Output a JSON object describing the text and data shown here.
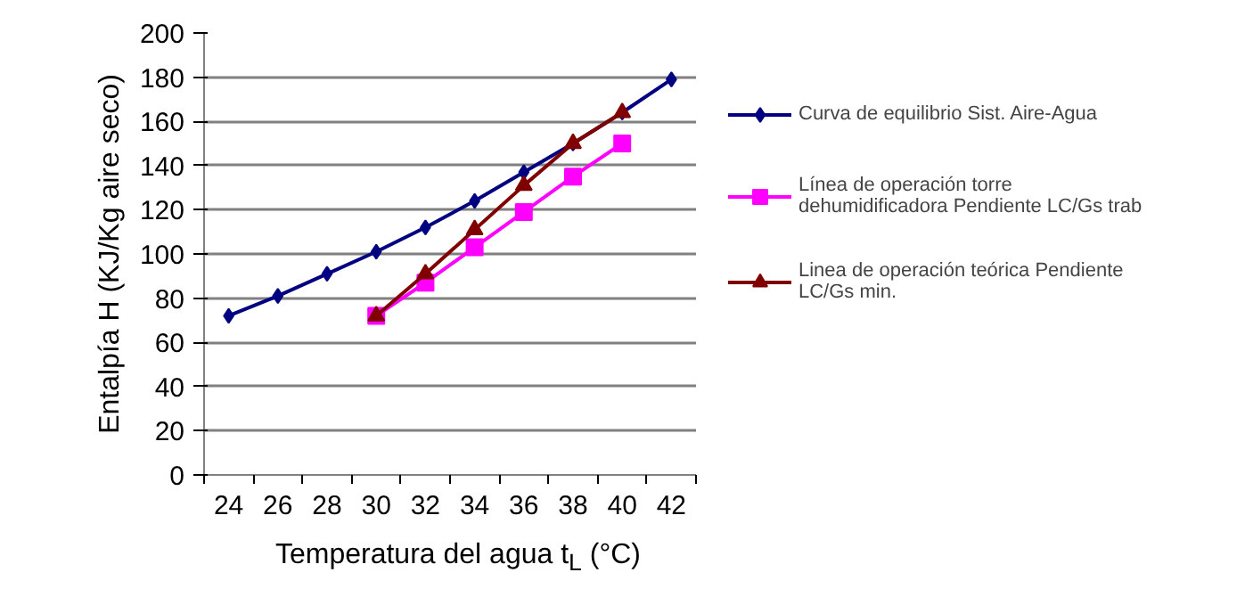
{
  "chart_data": {
    "type": "line",
    "xlabel": "Temperatura del agua t$_{L}$ (°C)",
    "ylabel": "Entalpía H (KJ/Kg aire seco)",
    "categories": [
      "24",
      "26",
      "28",
      "30",
      "32",
      "34",
      "36",
      "38",
      "40",
      "42"
    ],
    "ylim": [
      0,
      200
    ],
    "yticks": [
      0,
      20,
      40,
      60,
      80,
      100,
      120,
      140,
      160,
      180,
      200
    ],
    "grid": "y",
    "legend": "right",
    "series": [
      {
        "name": "Curva de equilibrio Sist. Aire-Agua",
        "color": "#000080",
        "marker": "diamond",
        "values": [
          72,
          81,
          91,
          101,
          112,
          124,
          137,
          150,
          164,
          179
        ]
      },
      {
        "name": "Línea de operación torre dehumidificadora Pendiente LC/Gs trab",
        "color": "#ff00ff",
        "marker": "square",
        "values": [
          null,
          null,
          null,
          72,
          87,
          103,
          119,
          135,
          150,
          null
        ]
      },
      {
        "name": "Linea de operación teórica Pendiente LC/Gs min.",
        "color": "#800000",
        "marker": "triangle",
        "values": [
          null,
          null,
          null,
          72,
          91,
          111,
          131,
          150,
          164,
          null
        ]
      }
    ]
  }
}
